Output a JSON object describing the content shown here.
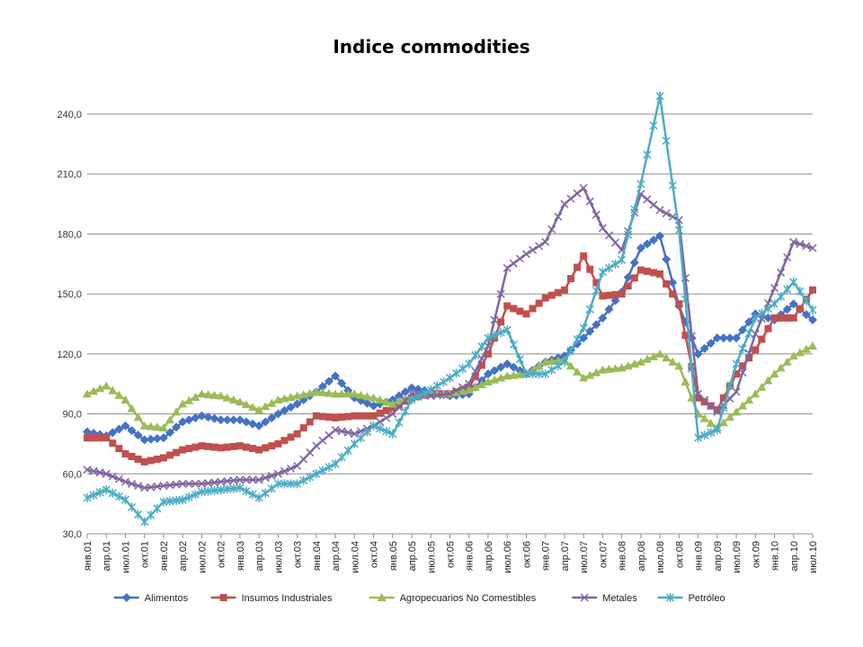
{
  "chart_data": {
    "type": "line",
    "title": "Indice commodities",
    "xlabel": "",
    "ylabel": "",
    "ylim": [
      30,
      240
    ],
    "yticks": [
      "30,0",
      "60,0",
      "90,0",
      "120,0",
      "150,0",
      "180,0",
      "210,0",
      "240,0"
    ],
    "grid": true,
    "legend_position": "bottom",
    "categories": [
      "янв.01",
      "апр.01",
      "июл.01",
      "окт.01",
      "янв.02",
      "апр.02",
      "июл.02",
      "окт.02",
      "янв.03",
      "апр.03",
      "июл.03",
      "окт.03",
      "янв.04",
      "апр.04",
      "июл.04",
      "окт.04",
      "янв.05",
      "апр.05",
      "июл.05",
      "окт.05",
      "янв.06",
      "апр.06",
      "июл.06",
      "окт.06",
      "янв.07",
      "апр.07",
      "июл.07",
      "окт.07",
      "янв.08",
      "апр.08",
      "июл.08",
      "окт.08",
      "янв.09",
      "апр.09",
      "июл.09",
      "окт.09",
      "янв.10",
      "апр.10",
      "июл.10"
    ],
    "series": [
      {
        "name": "Alimentos",
        "color": "#4472C4",
        "marker": "diamond",
        "values": [
          81,
          79,
          84,
          77,
          78,
          86,
          89,
          87,
          87,
          84,
          90,
          95,
          101,
          109,
          98,
          94,
          97,
          103,
          101,
          99,
          100,
          110,
          115,
          110,
          116,
          119,
          128,
          138,
          151,
          173,
          179,
          144,
          120,
          128,
          128,
          140,
          137,
          145,
          137
        ]
      },
      {
        "name": "Insumos Industriales",
        "color": "#C0504D",
        "marker": "square",
        "values": [
          78,
          78,
          70,
          66,
          68,
          72,
          74,
          73,
          74,
          72,
          75,
          80,
          89,
          88,
          89,
          89,
          93,
          98,
          100,
          100,
          103,
          120,
          144,
          140,
          148,
          152,
          169,
          149,
          150,
          162,
          160,
          145,
          98,
          92,
          110,
          122,
          138,
          138,
          152
        ]
      },
      {
        "name": "Agropecuarios No Comestibles",
        "color": "#9BBB59",
        "marker": "triangle",
        "values": [
          100,
          104,
          97,
          84,
          83,
          95,
          100,
          99,
          96,
          92,
          97,
          99,
          101,
          100,
          100,
          98,
          95,
          99,
          100,
          100,
          102,
          106,
          109,
          110,
          116,
          117,
          108,
          112,
          113,
          116,
          120,
          114,
          90,
          83,
          91,
          100,
          110,
          119,
          124
        ]
      },
      {
        "name": "Metales",
        "color": "#8064A2",
        "marker": "x",
        "values": [
          62,
          60,
          56,
          53,
          54,
          55,
          55,
          56,
          57,
          57,
          60,
          64,
          74,
          82,
          80,
          84,
          90,
          100,
          99,
          100,
          105,
          124,
          163,
          170,
          176,
          195,
          203,
          183,
          172,
          200,
          192,
          187,
          100,
          91,
          101,
          130,
          153,
          176,
          173
        ]
      },
      {
        "name": "Petróleo",
        "color": "#4BACC6",
        "marker": "asterisk",
        "values": [
          48,
          52,
          47,
          36,
          46,
          47,
          51,
          52,
          53,
          48,
          55,
          55,
          60,
          65,
          75,
          84,
          80,
          97,
          102,
          108,
          115,
          128,
          132,
          110,
          110,
          116,
          133,
          161,
          167,
          205,
          249,
          182,
          78,
          82,
          115,
          138,
          145,
          156,
          142
        ]
      }
    ]
  }
}
